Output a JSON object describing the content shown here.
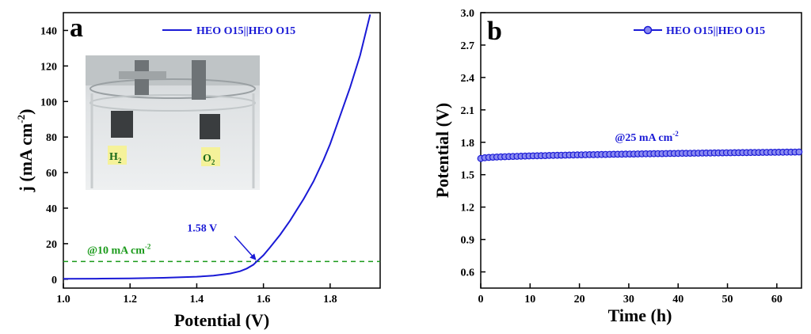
{
  "colors": {
    "series": "#1a1ad6",
    "reference": "#1a9a1a",
    "axis": "#000000",
    "label_box": "#f5f29a"
  },
  "chart_data": [
    {
      "type": "line",
      "panel_label": "a",
      "xlabel": "Potential (V)",
      "ylabel": "j (mA cm",
      "ylabel_sup": "-2",
      "ylabel_end": ")",
      "xlim": [
        1.0,
        1.95
      ],
      "ylim": [
        -5,
        150
      ],
      "x_ticks": [
        1.0,
        1.2,
        1.4,
        1.6,
        1.8
      ],
      "x_tick_labels": [
        "1.0",
        "1.2",
        "1.4",
        "1.6",
        "1.8"
      ],
      "y_ticks": [
        0,
        20,
        40,
        60,
        80,
        100,
        120,
        140
      ],
      "y_tick_labels": [
        "0",
        "20",
        "40",
        "60",
        "80",
        "100",
        "120",
        "140"
      ],
      "legend": {
        "label": "HEO O15||HEO O15",
        "placement": "top-right"
      },
      "series": [
        {
          "name": "HEO O15||HEO O15",
          "x": [
            1.0,
            1.1,
            1.2,
            1.3,
            1.4,
            1.45,
            1.5,
            1.53,
            1.55,
            1.57,
            1.58,
            1.6,
            1.62,
            1.65,
            1.68,
            1.7,
            1.72,
            1.75,
            1.78,
            1.8,
            1.83,
            1.86,
            1.89,
            1.92
          ],
          "y": [
            0.2,
            0.3,
            0.5,
            0.8,
            1.4,
            2,
            3.2,
            4.5,
            6,
            8.2,
            10,
            13.5,
            18,
            25,
            33,
            39,
            45,
            55,
            67,
            76,
            92,
            108,
            126,
            149
          ]
        }
      ],
      "reference_line": {
        "y": 10,
        "label": "@10 mA cm",
        "label_sup": "-2"
      },
      "annotation": {
        "text": "1.58 V",
        "x": 1.58,
        "y": 10
      },
      "inset": {
        "labels": [
          {
            "main": "H",
            "sub": "2"
          },
          {
            "main": "O",
            "sub": "2"
          }
        ]
      }
    },
    {
      "type": "line",
      "panel_label": "b",
      "xlabel": "Time (h)",
      "ylabel": "Potential (V)",
      "xlim": [
        0,
        65
      ],
      "ylim": [
        0.45,
        3.0
      ],
      "x_ticks": [
        0,
        10,
        20,
        30,
        40,
        50,
        60
      ],
      "x_tick_labels": [
        "0",
        "10",
        "20",
        "30",
        "40",
        "50",
        "60"
      ],
      "y_ticks": [
        0.6,
        0.9,
        1.2,
        1.5,
        1.8,
        2.1,
        2.4,
        2.7,
        3.0
      ],
      "y_tick_labels": [
        "0.6",
        "0.9",
        "1.2",
        "1.5",
        "1.8",
        "2.1",
        "2.4",
        "2.7",
        "3.0"
      ],
      "legend": {
        "label": "HEO O15||HEO O15",
        "placement": "top-right"
      },
      "series": [
        {
          "name": "HEO O15||HEO O15",
          "x_start": 0,
          "x_end": 64.5,
          "y_start": 1.65,
          "y_end": 1.71,
          "points": 80
        }
      ],
      "annotation": {
        "text": "@25 mA cm",
        "sup": "-2",
        "x": 32,
        "y": 1.71
      }
    }
  ]
}
